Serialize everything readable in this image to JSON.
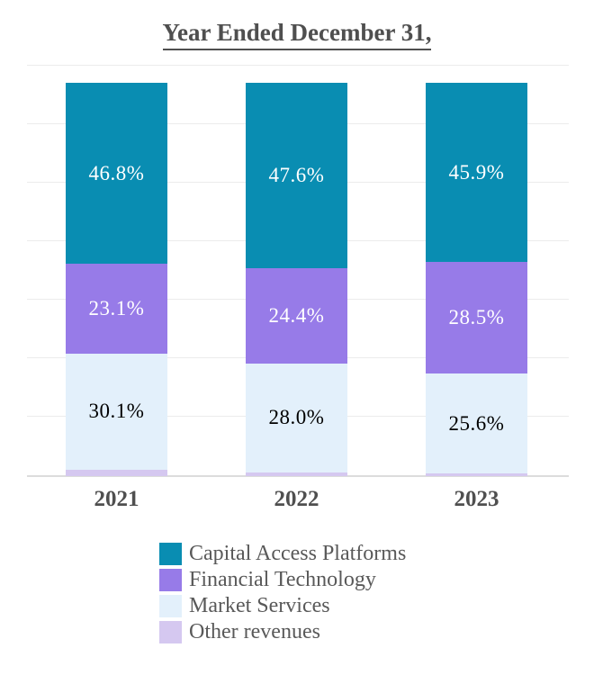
{
  "chart_data": {
    "type": "bar",
    "stacked": true,
    "orientation": "vertical",
    "title": "Year Ended December 31,",
    "categories": [
      "2021",
      "2022",
      "2023"
    ],
    "series": [
      {
        "name": "Capital Access Platforms",
        "color": "#098DB2",
        "label_color": "#ffffff",
        "values": [
          46.8,
          47.6,
          45.9
        ],
        "labels": [
          "46.8%",
          "47.6%",
          "45.9%"
        ]
      },
      {
        "name": "Financial Technology",
        "color": "#977BE8",
        "label_color": "#ffffff",
        "values": [
          23.1,
          24.4,
          28.5
        ],
        "labels": [
          "23.1%",
          "24.4%",
          "28.5%"
        ]
      },
      {
        "name": "Market Services",
        "color": "#E3F0FB",
        "label_color": "#000000",
        "values": [
          30.1,
          28.0,
          25.6
        ],
        "labels": [
          "30.1%",
          "28.0%",
          "25.6%"
        ]
      },
      {
        "name": "Other revenues",
        "color": "#D5C8F0",
        "label_color": null,
        "values": [
          1.6,
          1.0,
          0.6
        ],
        "labels": [
          "",
          "",
          ""
        ]
      }
    ],
    "ylim": [
      0,
      100
    ],
    "grid": true,
    "legend_position": "bottom",
    "title_color": "#4f4f4f",
    "axis_label_color": "#4f4f4f",
    "legend_text_color": "#595959",
    "gridline_color": "#ececec",
    "background_color": "#ffffff"
  }
}
